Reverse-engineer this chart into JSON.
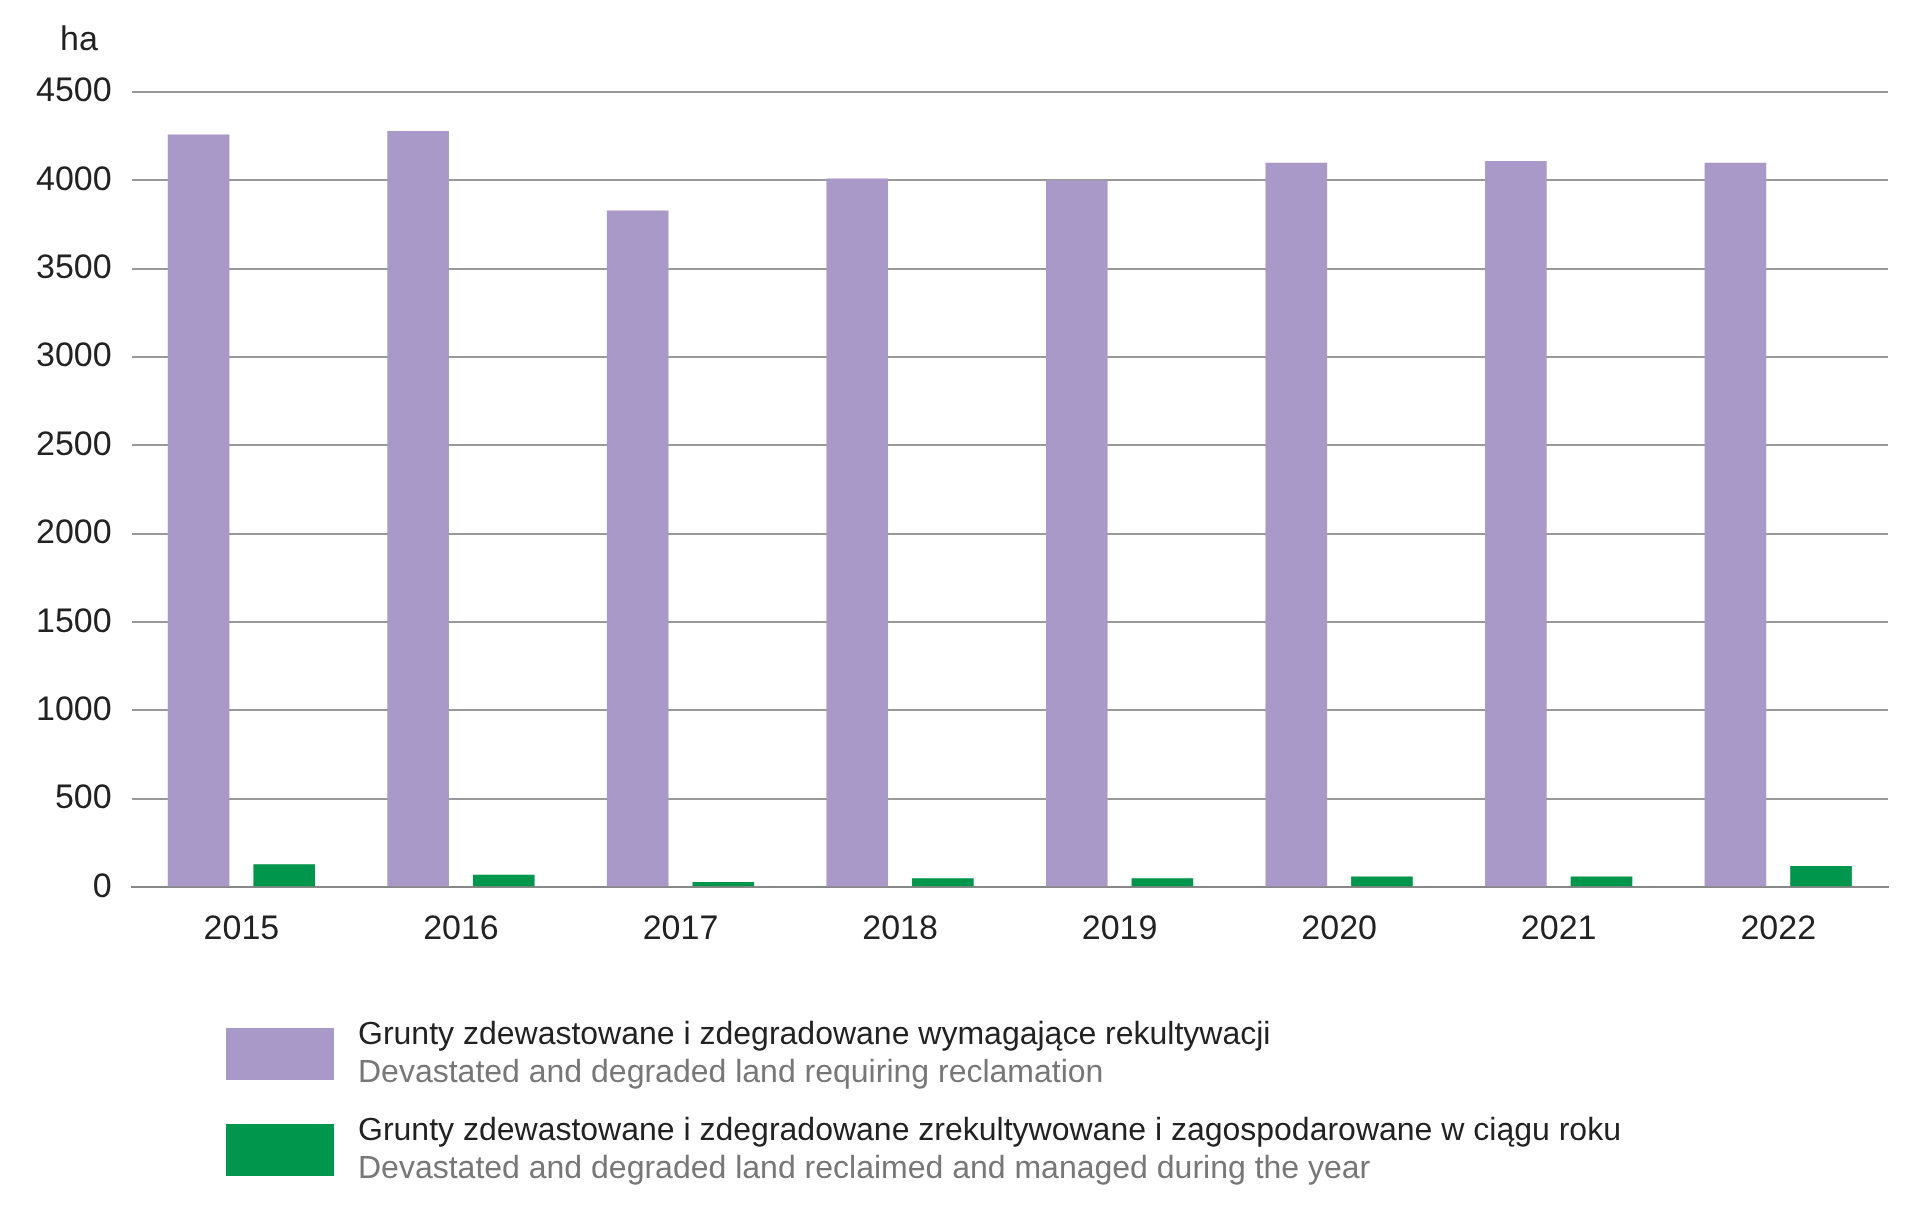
{
  "chart_data": {
    "type": "bar",
    "ylabel": "ha",
    "categories": [
      "2015",
      "2016",
      "2017",
      "2018",
      "2019",
      "2020",
      "2021",
      "2022"
    ],
    "series": [
      {
        "name": "Grunty zdewastowane i zdegradowane wymagające rekultywacji\nDevastated and degraded land requiring reclamation",
        "color": "#a899c8",
        "values": [
          4260,
          4280,
          3830,
          4010,
          4000,
          4100,
          4110,
          4100
        ]
      },
      {
        "name": "Grunty zdewastowane i zdegradowane zrekultywowane i zagospodarowane w ciągu roku\nDevastated and degraded land reclaimed and managed during the year",
        "color": "#00964b",
        "values": [
          130,
          70,
          30,
          50,
          50,
          60,
          60,
          120
        ]
      }
    ],
    "ylim": [
      0,
      4500
    ],
    "yticks": [
      0,
      500,
      1000,
      1500,
      2000,
      2500,
      3000,
      3500,
      4000,
      4500
    ],
    "grid": "y",
    "legend": "bottom"
  }
}
